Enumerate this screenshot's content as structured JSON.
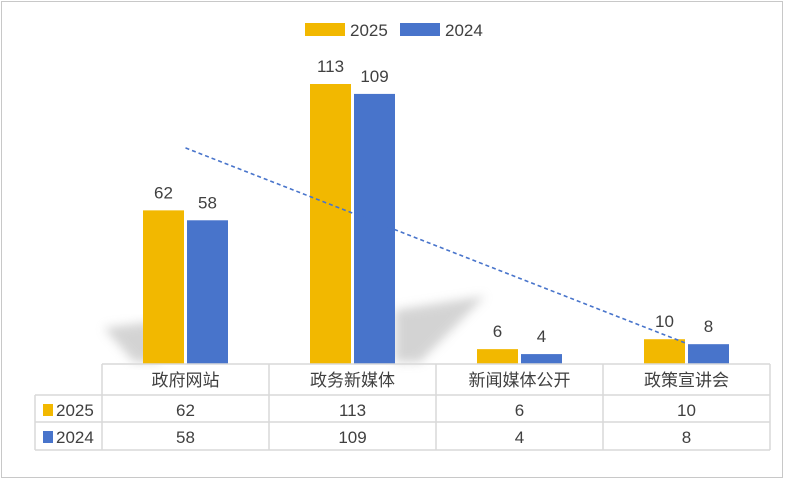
{
  "chart_data": {
    "type": "bar",
    "title": "",
    "categories": [
      "政府网站",
      "政务新媒体",
      "新闻媒体公开",
      "政策宣讲会"
    ],
    "series": [
      {
        "name": "2025",
        "values": [
          62,
          113,
          6,
          10
        ],
        "color": "#F2B800"
      },
      {
        "name": "2024",
        "values": [
          58,
          109,
          4,
          8
        ],
        "color": "#4874CB"
      }
    ],
    "trendline": {
      "series": "2025",
      "type": "linear",
      "style": "dashed",
      "color": "#4874CB"
    },
    "data_labels": true,
    "data_table": true,
    "legend": "top",
    "grid": false,
    "ylim": [
      0,
      113
    ]
  }
}
